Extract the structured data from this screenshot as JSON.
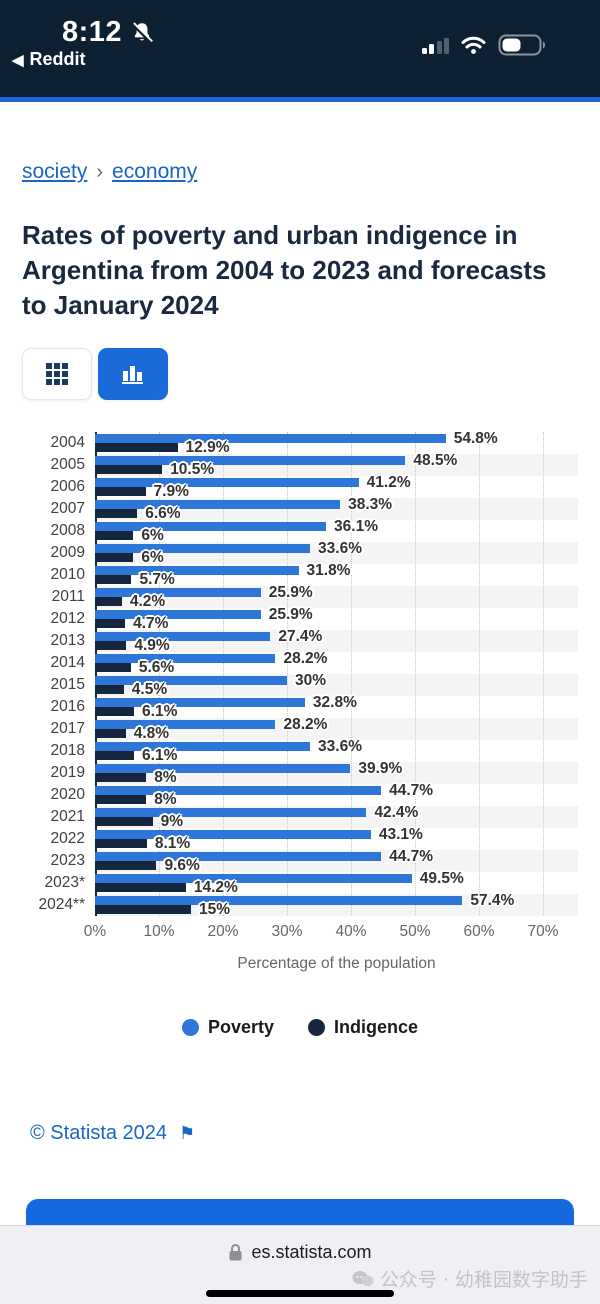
{
  "status_bar": {
    "time": "8:12",
    "back_app": "Reddit",
    "back_arrow": "◀"
  },
  "breadcrumb": {
    "items": [
      {
        "label": "society"
      },
      {
        "label": "economy"
      }
    ],
    "separator": "›"
  },
  "page": {
    "title": "Rates of poverty and urban indigence in Argentina from 2004 to 2023 and forecasts to January 2024"
  },
  "toolbar": {
    "table_view_icon": "grid-icon",
    "chart_view_icon": "bar-chart-icon",
    "active_view": "chart"
  },
  "chart_data": {
    "type": "bar",
    "orientation": "horizontal",
    "categories": [
      "2004",
      "2005",
      "2006",
      "2007",
      "2008",
      "2009",
      "2010",
      "2011",
      "2012",
      "2013",
      "2014",
      "2015",
      "2016",
      "2017",
      "2018",
      "2019",
      "2020",
      "2021",
      "2022",
      "2023",
      "2023*",
      "2024**"
    ],
    "series": [
      {
        "name": "Poverty",
        "color": "#2e77d8",
        "values": [
          54.8,
          48.5,
          41.2,
          38.3,
          36.1,
          33.6,
          31.8,
          25.9,
          25.9,
          27.4,
          28.2,
          30,
          32.8,
          28.2,
          33.6,
          39.9,
          44.7,
          42.4,
          43.1,
          44.7,
          49.5,
          57.4
        ]
      },
      {
        "name": "Indigence",
        "color": "#16263e",
        "values": [
          12.9,
          10.5,
          7.9,
          6.6,
          6,
          6,
          5.7,
          4.2,
          4.7,
          4.9,
          5.6,
          4.5,
          6.1,
          4.8,
          6.1,
          8,
          8,
          9,
          8.1,
          9.6,
          14.2,
          15
        ]
      }
    ],
    "value_suffix": "%",
    "x_ticks": [
      "0%",
      "10%",
      "20%",
      "30%",
      "40%",
      "50%",
      "60%",
      "70%"
    ],
    "xlim": [
      0,
      70
    ],
    "xlabel": "Percentage of the population",
    "grid": "vertical-dotted",
    "legend_position": "bottom"
  },
  "footer": {
    "copyright": "© Statista 2024",
    "flag_icon": "⚑"
  },
  "browser": {
    "url": "es.statista.com"
  },
  "watermark": {
    "text": "公众号 · 幼稚园数字助手"
  }
}
